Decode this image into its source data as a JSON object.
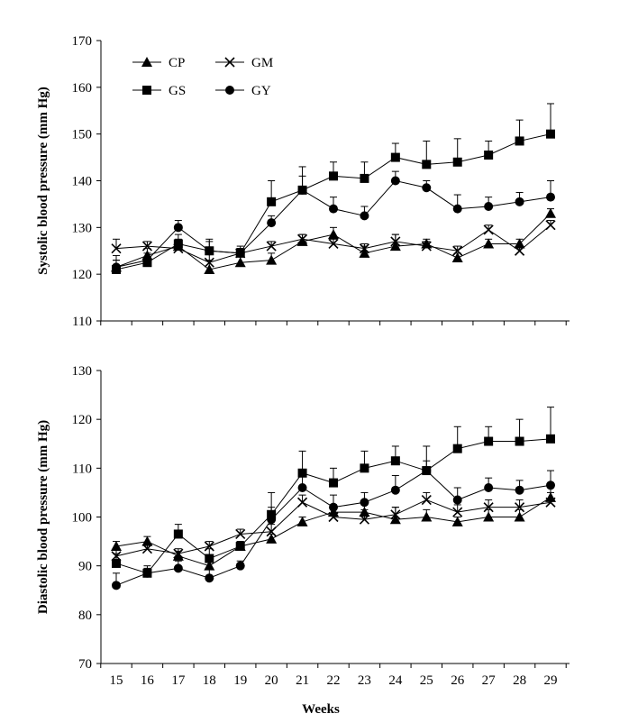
{
  "chart_data": [
    {
      "type": "line",
      "ylabel": "Systolic blood pressure (mm Hg)",
      "xlabel": "",
      "ylim": [
        110,
        170
      ],
      "yticks": [
        110,
        120,
        130,
        140,
        150,
        160,
        170
      ],
      "x": [
        15,
        16,
        17,
        18,
        19,
        20,
        21,
        22,
        23,
        24,
        25,
        26,
        27,
        28,
        29
      ],
      "legend_position": "top-left",
      "series": [
        {
          "name": "CP",
          "marker": "triangle",
          "values": [
            121.5,
            124,
            126,
            121,
            122.5,
            123,
            127,
            128.5,
            124.5,
            126,
            126.5,
            123.5,
            126.5,
            126.5,
            133
          ]
        },
        {
          "name": "GM",
          "marker": "x",
          "values": [
            125.5,
            126,
            125.5,
            122.5,
            124.5,
            126,
            127.5,
            126.5,
            125.5,
            127,
            126,
            125,
            129.5,
            125,
            130.5
          ]
        },
        {
          "name": "GS",
          "marker": "square",
          "values": [
            121,
            122.5,
            126.5,
            125,
            124.5,
            135.5,
            138,
            141,
            140.5,
            145,
            143.5,
            144,
            145.5,
            148.5,
            150
          ]
        },
        {
          "name": "GY",
          "marker": "circle",
          "values": [
            121.5,
            123,
            130,
            125,
            124.5,
            131,
            138,
            134,
            132.5,
            140,
            138.5,
            134,
            134.5,
            135.5,
            136.5
          ]
        }
      ],
      "error_bars": {
        "CP": [
          1.5,
          1.5,
          1.5,
          2,
          1.5,
          1.5,
          1.5,
          1.5,
          1.5,
          2.5,
          1,
          1,
          1,
          1,
          1
        ],
        "GM": [
          2,
          1,
          1,
          2,
          1,
          1,
          1,
          1,
          1,
          1.5,
          1,
          1,
          1,
          1,
          1
        ],
        "GS": [
          2,
          1,
          2,
          2,
          1,
          4.5,
          5,
          3,
          3.5,
          3,
          5,
          5,
          3,
          4.5,
          6.5
        ],
        "GY": [
          2.5,
          1.5,
          1.5,
          2.5,
          1.5,
          1.5,
          3,
          2.5,
          2,
          2,
          1.5,
          3,
          2,
          2,
          3.5
        ]
      }
    },
    {
      "type": "line",
      "ylabel": "Diastolic blood pressure (mm Hg)",
      "xlabel": "Weeks",
      "ylim": [
        70,
        130
      ],
      "yticks": [
        70,
        80,
        90,
        100,
        110,
        120,
        130
      ],
      "x": [
        15,
        16,
        17,
        18,
        19,
        20,
        21,
        22,
        23,
        24,
        25,
        26,
        27,
        28,
        29
      ],
      "series": [
        {
          "name": "CP",
          "marker": "triangle",
          "values": [
            94,
            95,
            92,
            90,
            94,
            95.5,
            99,
            101,
            101,
            99.5,
            100,
            99,
            100,
            100,
            104
          ]
        },
        {
          "name": "GM",
          "marker": "x",
          "values": [
            92,
            93.5,
            92.5,
            94,
            96.5,
            97,
            103,
            100,
            99.5,
            100.5,
            103.5,
            101,
            102,
            102,
            103
          ]
        },
        {
          "name": "GS",
          "marker": "square",
          "values": [
            90.5,
            88.5,
            96.5,
            91.5,
            94,
            100.5,
            109,
            107,
            110,
            111.5,
            109.5,
            114,
            115.5,
            115.5,
            116
          ]
        },
        {
          "name": "GY",
          "marker": "circle",
          "values": [
            86,
            88.5,
            89.5,
            87.5,
            90,
            99.5,
            106,
            102,
            103,
            105.5,
            109.5,
            103.5,
            106,
            105.5,
            106.5
          ]
        }
      ],
      "error_bars": {
        "CP": [
          1,
          1,
          1,
          2,
          1,
          1,
          1,
          1.5,
          1.5,
          2.5,
          1.5,
          1,
          1.5,
          1.5,
          3
        ],
        "GM": [
          1.5,
          1,
          1,
          1,
          1,
          1.5,
          1.5,
          1.5,
          2,
          1.5,
          1.5,
          1.5,
          1.5,
          1.5,
          2
        ],
        "GS": [
          2,
          1,
          2,
          2,
          1,
          4.5,
          4.5,
          3,
          3.5,
          3,
          5,
          4.5,
          3,
          4.5,
          6.5
        ],
        "GY": [
          2.5,
          1.5,
          1.5,
          2,
          1,
          2.5,
          3,
          2.5,
          2,
          3,
          2,
          2.5,
          2,
          2,
          3
        ]
      }
    }
  ]
}
